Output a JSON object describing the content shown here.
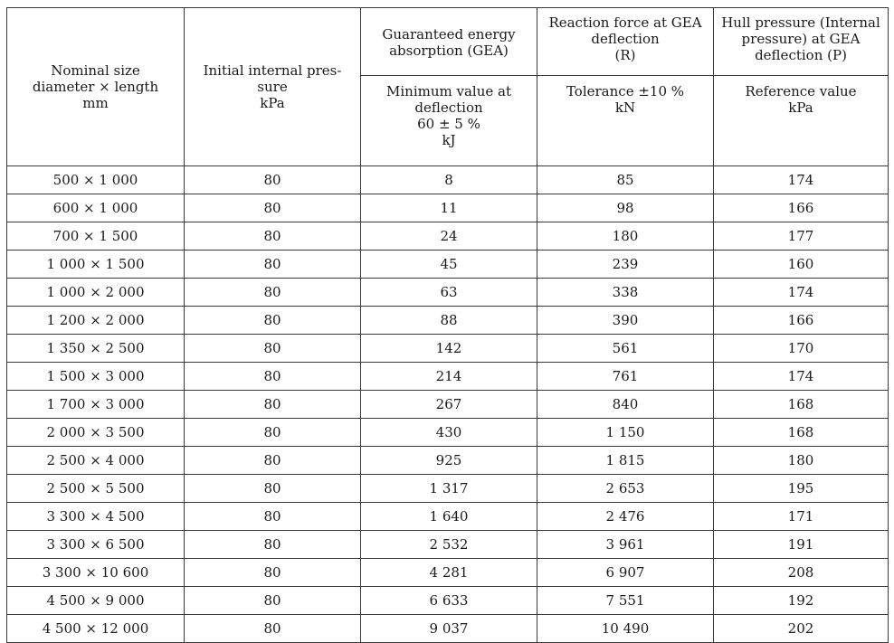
{
  "header": {
    "nominal_size": {
      "l1": "Nominal size",
      "l2": "diameter × length",
      "l3": "mm"
    },
    "initial_pressure": {
      "l1": "Initial internal pres-",
      "l2": "sure",
      "l3": "kPa"
    },
    "gea": {
      "l1": "Guaranteed energy",
      "l2": "absorption (GEA)"
    },
    "gea_sub": {
      "l1": "Minimum value at",
      "l2": "deflection",
      "l3": "60 ± 5 %",
      "l4": "kJ"
    },
    "reaction": {
      "l1": "Reaction force at GEA",
      "l2": "deflection",
      "l3": "(R)"
    },
    "reaction_sub": {
      "l1": "Tolerance ±10 %",
      "l2": "kN"
    },
    "hull": {
      "l1": "Hull pressure (Internal",
      "l2": "pressure) at GEA",
      "l3": "deflection (P)"
    },
    "hull_sub": {
      "l1": "Reference value",
      "l2": "kPa"
    }
  },
  "rows": [
    {
      "size": "500 × 1 000",
      "pressure": "80",
      "gea": "8",
      "reaction": "85",
      "hull": "174"
    },
    {
      "size": "600 × 1 000",
      "pressure": "80",
      "gea": "11",
      "reaction": "98",
      "hull": "166"
    },
    {
      "size": "700 × 1 500",
      "pressure": "80",
      "gea": "24",
      "reaction": "180",
      "hull": "177"
    },
    {
      "size": "1 000 × 1 500",
      "pressure": "80",
      "gea": "45",
      "reaction": "239",
      "hull": "160"
    },
    {
      "size": "1 000 × 2 000",
      "pressure": "80",
      "gea": "63",
      "reaction": "338",
      "hull": "174"
    },
    {
      "size": "1 200 × 2 000",
      "pressure": "80",
      "gea": "88",
      "reaction": "390",
      "hull": "166"
    },
    {
      "size": "1 350 × 2 500",
      "pressure": "80",
      "gea": "142",
      "reaction": "561",
      "hull": "170"
    },
    {
      "size": "1 500 × 3 000",
      "pressure": "80",
      "gea": "214",
      "reaction": "761",
      "hull": "174"
    },
    {
      "size": "1 700 × 3 000",
      "pressure": "80",
      "gea": "267",
      "reaction": "840",
      "hull": "168"
    },
    {
      "size": "2 000 × 3 500",
      "pressure": "80",
      "gea": "430",
      "reaction": "1 150",
      "hull": "168"
    },
    {
      "size": "2 500 × 4 000",
      "pressure": "80",
      "gea": "925",
      "reaction": "1 815",
      "hull": "180"
    },
    {
      "size": "2 500 × 5 500",
      "pressure": "80",
      "gea": "1 317",
      "reaction": "2 653",
      "hull": "195"
    },
    {
      "size": "3 300 × 4 500",
      "pressure": "80",
      "gea": "1 640",
      "reaction": "2 476",
      "hull": "171"
    },
    {
      "size": "3 300 × 6 500",
      "pressure": "80",
      "gea": "2 532",
      "reaction": "3 961",
      "hull": "191"
    },
    {
      "size": "3 300 × 10 600",
      "pressure": "80",
      "gea": "4 281",
      "reaction": "6 907",
      "hull": "208"
    },
    {
      "size": "4 500 × 9 000",
      "pressure": "80",
      "gea": "6 633",
      "reaction": "7 551",
      "hull": "192"
    },
    {
      "size": "4 500 × 12 000",
      "pressure": "80",
      "gea": "9 037",
      "reaction": "10 490",
      "hull": "202"
    }
  ]
}
